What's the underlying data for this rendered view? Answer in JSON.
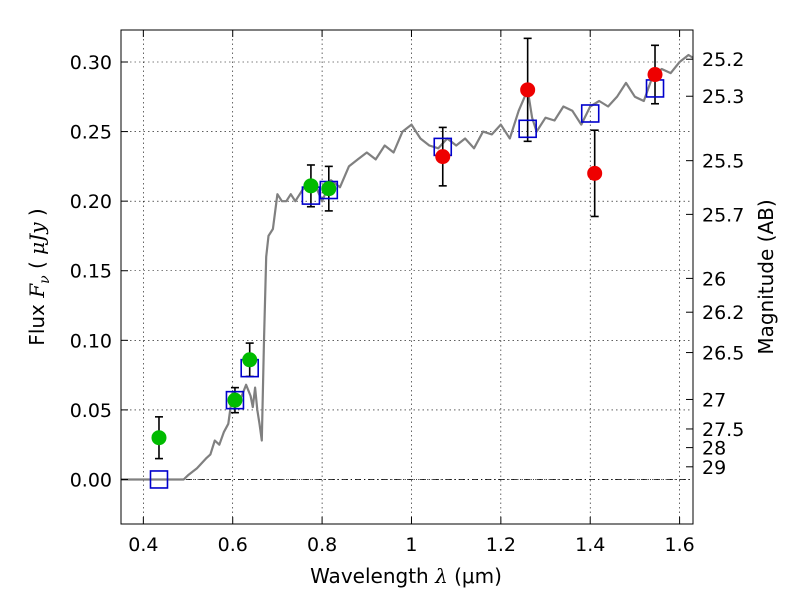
{
  "chart_data": {
    "type": "line",
    "xlabel": "Wavelength",
    "xlabel_symbol": "λ",
    "xlabel_unit": "(μm)",
    "ylabel": "Flux",
    "ylabel_symbol": "F",
    "ylabel_subscript": "ν",
    "ylabel_unit_open": "(",
    "ylabel_unit": "μJy",
    "ylabel_unit_close": ")",
    "y2label": "Magnitude (AB)",
    "xlim": [
      0.35,
      1.63
    ],
    "ylim": [
      -0.032,
      0.323
    ],
    "grid": true,
    "x_ticks": [
      0.4,
      0.6,
      0.8,
      1.0,
      1.2,
      1.4,
      1.6
    ],
    "x_tick_labels": [
      "0.4",
      "0.6",
      "0.8",
      "1",
      "1.2",
      "1.4",
      "1.6"
    ],
    "y_ticks": [
      0.0,
      0.05,
      0.1,
      0.15,
      0.2,
      0.25,
      0.3
    ],
    "y_tick_labels": [
      "0.00",
      "0.05",
      "0.10",
      "0.15",
      "0.20",
      "0.25",
      "0.30"
    ],
    "y2_ticks": [
      {
        "label": "25.2",
        "flux": 0.302
      },
      {
        "label": "25.3",
        "flux": 0.2754
      },
      {
        "label": "25.5",
        "flux": 0.2291
      },
      {
        "label": "25.7",
        "flux": 0.1905
      },
      {
        "label": "26",
        "flux": 0.1445
      },
      {
        "label": "26.2",
        "flux": 0.1202
      },
      {
        "label": "26.5",
        "flux": 0.0912
      },
      {
        "label": "27",
        "flux": 0.0575
      },
      {
        "label": "27.5",
        "flux": 0.0363
      },
      {
        "label": "28",
        "flux": 0.0229
      },
      {
        "label": "29",
        "flux": 0.0091
      }
    ],
    "zero_line": {
      "y": 0.0,
      "style": "dash-dot",
      "color": "#000000"
    },
    "colors": {
      "model": "#808080",
      "green_points": "#00bb00",
      "red_points": "#ee0000",
      "model_squares": "#0000cc",
      "error_bars": "#000000"
    },
    "series": [
      {
        "kind": "model_spectrum",
        "x": [
          0.35,
          0.49,
          0.5,
          0.52,
          0.54,
          0.55,
          0.56,
          0.57,
          0.58,
          0.59,
          0.6,
          0.61,
          0.62,
          0.63,
          0.64,
          0.645,
          0.65,
          0.655,
          0.66,
          0.665,
          0.67,
          0.675,
          0.68,
          0.69,
          0.7,
          0.71,
          0.72,
          0.73,
          0.74,
          0.76,
          0.78,
          0.8,
          0.82,
          0.84,
          0.86,
          0.88,
          0.9,
          0.92,
          0.94,
          0.96,
          0.98,
          1.0,
          1.02,
          1.04,
          1.06,
          1.08,
          1.1,
          1.12,
          1.14,
          1.16,
          1.18,
          1.2,
          1.22,
          1.24,
          1.26,
          1.27,
          1.28,
          1.3,
          1.32,
          1.34,
          1.36,
          1.38,
          1.4,
          1.42,
          1.44,
          1.46,
          1.48,
          1.5,
          1.52,
          1.54,
          1.56,
          1.58,
          1.6,
          1.62,
          1.63
        ],
        "y": [
          0.0,
          0.0,
          0.003,
          0.008,
          0.015,
          0.018,
          0.028,
          0.025,
          0.034,
          0.04,
          0.063,
          0.055,
          0.06,
          0.068,
          0.06,
          0.052,
          0.066,
          0.05,
          0.04,
          0.028,
          0.1,
          0.16,
          0.175,
          0.18,
          0.205,
          0.2,
          0.2,
          0.205,
          0.2,
          0.21,
          0.215,
          0.2,
          0.215,
          0.21,
          0.225,
          0.23,
          0.235,
          0.23,
          0.24,
          0.235,
          0.25,
          0.255,
          0.245,
          0.24,
          0.238,
          0.245,
          0.24,
          0.245,
          0.238,
          0.25,
          0.248,
          0.255,
          0.245,
          0.265,
          0.28,
          0.26,
          0.25,
          0.26,
          0.258,
          0.268,
          0.265,
          0.255,
          0.268,
          0.272,
          0.268,
          0.275,
          0.285,
          0.275,
          0.272,
          0.29,
          0.295,
          0.292,
          0.3,
          0.305,
          0.303
        ]
      },
      {
        "kind": "observed_green",
        "x": [
          0.435,
          0.605,
          0.638,
          0.775,
          0.815
        ],
        "y": [
          0.03,
          0.057,
          0.086,
          0.211,
          0.209
        ],
        "err": [
          0.015,
          0.009,
          0.012,
          0.015,
          0.016
        ]
      },
      {
        "kind": "observed_red",
        "x": [
          1.07,
          1.26,
          1.41,
          1.545
        ],
        "y": [
          0.232,
          0.28,
          0.22,
          0.291
        ],
        "err": [
          0.021,
          0.037,
          0.031,
          0.021
        ]
      },
      {
        "kind": "model_photometry",
        "x": [
          0.435,
          0.605,
          0.638,
          0.775,
          0.815,
          1.07,
          1.26,
          1.4,
          1.545
        ],
        "y": [
          0.0,
          0.057,
          0.08,
          0.204,
          0.208,
          0.239,
          0.252,
          0.263,
          0.281
        ]
      }
    ]
  }
}
